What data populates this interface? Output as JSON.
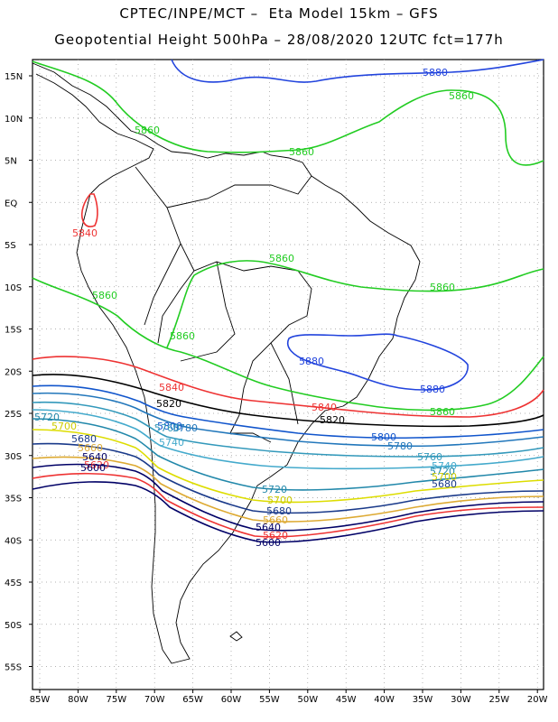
{
  "header": {
    "line1": "CPTEC/INPE/MCT –  Eta Model 15km – GFS",
    "line2": "Geopotential Height 500hPa – 28/08/2020 12UTC fct=177h"
  },
  "axes": {
    "lat_labels": [
      "15N",
      "10N",
      "5N",
      "EQ",
      "5S",
      "10S",
      "15S",
      "20S",
      "25S",
      "30S",
      "35S",
      "40S",
      "45S",
      "50S",
      "55S"
    ],
    "lon_labels": [
      "85W",
      "80W",
      "75W",
      "70W",
      "65W",
      "60W",
      "55W",
      "50W",
      "45W",
      "40W",
      "35W",
      "30W",
      "25W",
      "20W"
    ],
    "lat_range": [
      17.5,
      -60
    ],
    "lon_range": [
      -85,
      -20
    ]
  },
  "colors": {
    "c5880": "#2244dd",
    "c5860": "#22cc22",
    "c5840": "#ee3333",
    "c5820": "#000000",
    "c5800": "#1155cc",
    "c5780": "#2277bb",
    "c5760": "#3399bb",
    "c5740": "#44aacc",
    "c5720": "#2288aa",
    "c5700": "#dddd00",
    "c5680": "#1a3a8a",
    "c5660": "#ddaa33",
    "c5640": "#000066",
    "c5620": "#ee3333",
    "c5600": "#000066"
  },
  "contours": [
    {
      "value": "5880",
      "labels": [
        {
          "text": "5880"
        },
        {
          "text": "5880"
        },
        {
          "text": "5880"
        }
      ]
    },
    {
      "value": "5860",
      "labels": [
        {
          "text": "5860"
        },
        {
          "text": "5860"
        },
        {
          "text": "5860"
        },
        {
          "text": "5860"
        },
        {
          "text": "5860"
        },
        {
          "text": "5860"
        },
        {
          "text": "5860"
        },
        {
          "text": "5860"
        }
      ]
    },
    {
      "value": "5840",
      "labels": [
        {
          "text": "5840"
        },
        {
          "text": "5840"
        },
        {
          "text": "5840"
        }
      ]
    },
    {
      "value": "5820",
      "labels": [
        {
          "text": "5820"
        },
        {
          "text": "5820"
        }
      ]
    },
    {
      "value": "5800",
      "labels": [
        {
          "text": "5800"
        },
        {
          "text": "5800"
        }
      ]
    },
    {
      "value": "5780",
      "labels": [
        {
          "text": "5780"
        },
        {
          "text": "5780"
        }
      ]
    },
    {
      "value": "5760",
      "labels": [
        {
          "text": "5760"
        },
        {
          "text": "5760"
        }
      ]
    },
    {
      "value": "5740",
      "labels": [
        {
          "text": "5740"
        },
        {
          "text": "5740"
        }
      ]
    },
    {
      "value": "5720",
      "labels": [
        {
          "text": "5720"
        },
        {
          "text": "5720"
        },
        {
          "text": "5720"
        }
      ]
    },
    {
      "value": "5700",
      "labels": [
        {
          "text": "5700"
        },
        {
          "text": "5700"
        },
        {
          "text": "5700"
        }
      ]
    },
    {
      "value": "5680",
      "labels": [
        {
          "text": "5680"
        },
        {
          "text": "5680"
        },
        {
          "text": "5680"
        }
      ]
    },
    {
      "value": "5660",
      "labels": [
        {
          "text": "5660"
        },
        {
          "text": "5660"
        }
      ]
    },
    {
      "value": "5640",
      "labels": [
        {
          "text": "5640"
        },
        {
          "text": "5640"
        }
      ]
    },
    {
      "value": "5620",
      "labels": [
        {
          "text": "5620"
        },
        {
          "text": "5620"
        }
      ]
    },
    {
      "value": "5600",
      "labels": [
        {
          "text": "5600"
        },
        {
          "text": "5600"
        }
      ]
    }
  ]
}
